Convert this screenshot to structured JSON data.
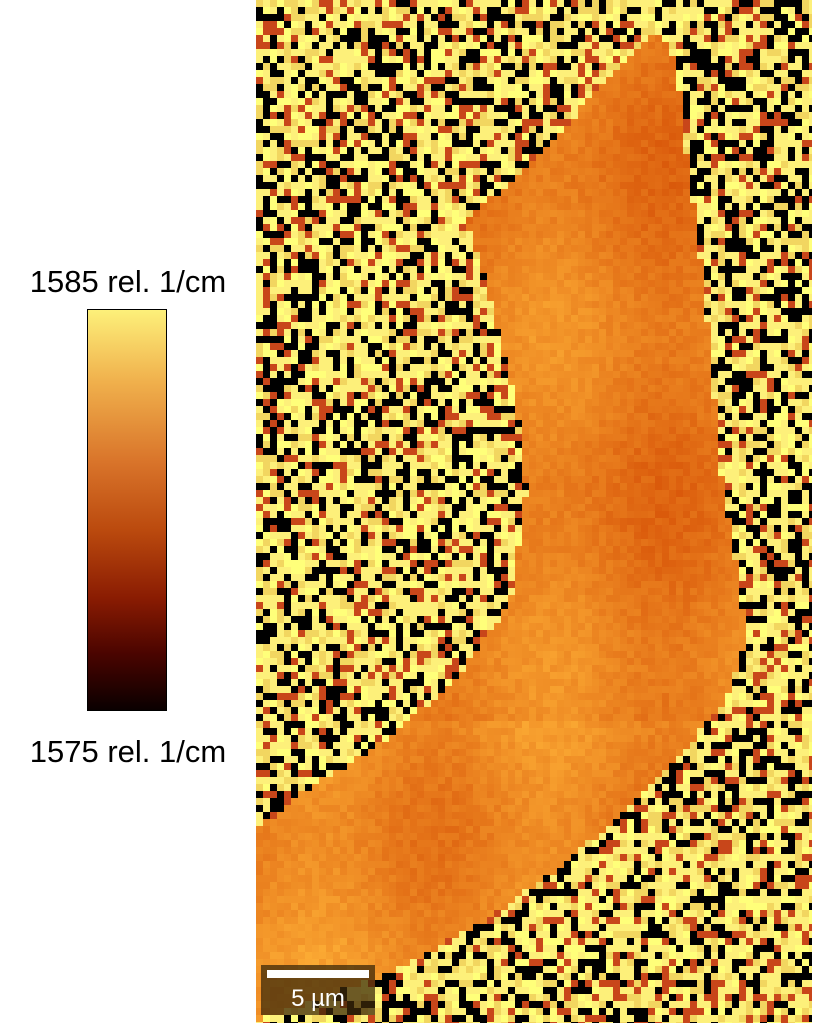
{
  "chart_data": {
    "type": "heatmap",
    "colorbar": {
      "max_label": "1585 rel. 1/cm",
      "min_label": "1575 rel. 1/cm",
      "range": [
        1575,
        1585
      ],
      "colormap": [
        "#0a0000",
        "#4a0400",
        "#8a1c02",
        "#bb4a0e",
        "#d9742a",
        "#f0b04c",
        "#fdf07a"
      ]
    },
    "scalebar_label": "5 µm",
    "region": {
      "background": "noise",
      "particle_mean_value": 1581.5
    }
  }
}
